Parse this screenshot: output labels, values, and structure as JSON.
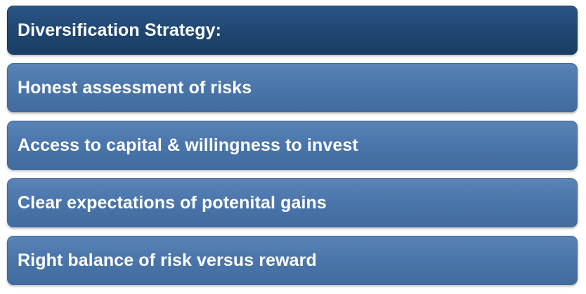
{
  "header": {
    "title": "Diversification Strategy:"
  },
  "items": [
    {
      "label": "Honest assessment of risks"
    },
    {
      "label": "Access to capital & willingness to invest"
    },
    {
      "label": "Clear expectations of potenital gains"
    },
    {
      "label": "Right balance of risk versus reward"
    }
  ],
  "colors": {
    "header_bg": "#1f4670",
    "item_bg": "#4a75aa",
    "text": "#ffffff"
  }
}
